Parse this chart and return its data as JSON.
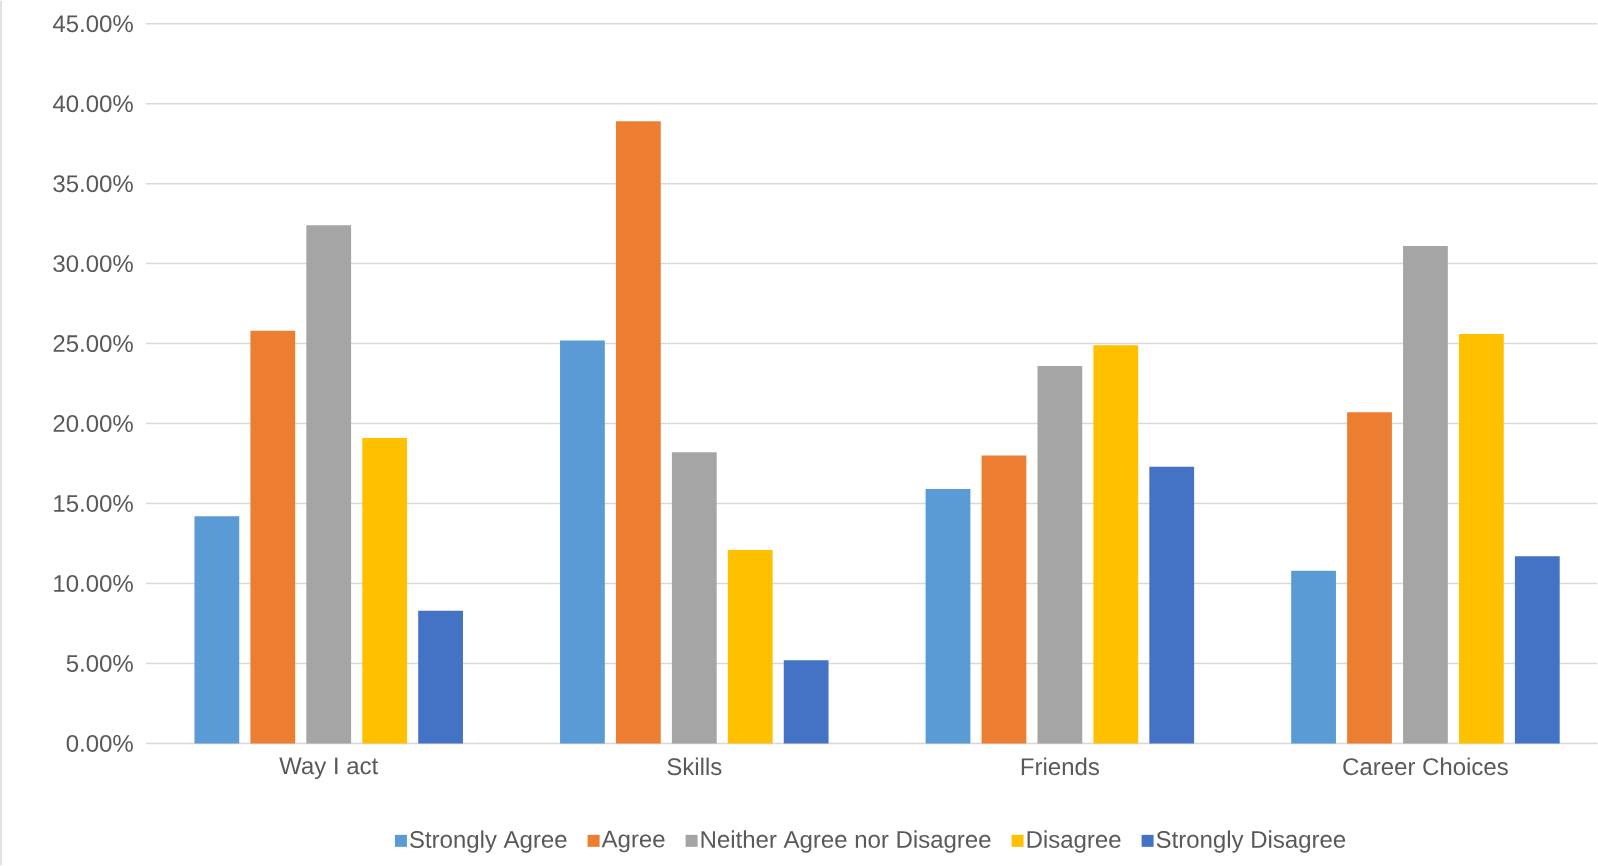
{
  "chart_data": {
    "type": "bar",
    "categories": [
      "Way I act",
      "Skills",
      "Friends",
      "Career Choices"
    ],
    "series": [
      {
        "name": "Strongly Agree",
        "color": "#5b9bd5",
        "values": [
          14.2,
          25.2,
          15.9,
          10.8
        ]
      },
      {
        "name": "Agree",
        "color": "#ed7d31",
        "values": [
          25.8,
          38.9,
          18.0,
          20.7
        ]
      },
      {
        "name": "Neither Agree nor Disagree",
        "color": "#a5a5a5",
        "values": [
          32.4,
          18.2,
          23.6,
          31.1
        ]
      },
      {
        "name": "Disagree",
        "color": "#ffc000",
        "values": [
          19.1,
          12.1,
          24.9,
          25.6
        ]
      },
      {
        "name": "Strongly Disagree",
        "color": "#4472c4",
        "values": [
          8.3,
          5.2,
          17.3,
          11.7
        ]
      }
    ],
    "ylim": [
      0,
      45
    ],
    "yticks": [
      {
        "value": 0,
        "label": "0.00%"
      },
      {
        "value": 5,
        "label": "5.00%"
      },
      {
        "value": 10,
        "label": "10.00%"
      },
      {
        "value": 15,
        "label": "15.00%"
      },
      {
        "value": 20,
        "label": "20.00%"
      },
      {
        "value": 25,
        "label": "25.00%"
      },
      {
        "value": 30,
        "label": "30.00%"
      },
      {
        "value": 35,
        "label": "35.00%"
      },
      {
        "value": 40,
        "label": "40.00%"
      },
      {
        "value": 45,
        "label": "45.00%"
      }
    ],
    "grid": "y",
    "legend": "bottom"
  }
}
